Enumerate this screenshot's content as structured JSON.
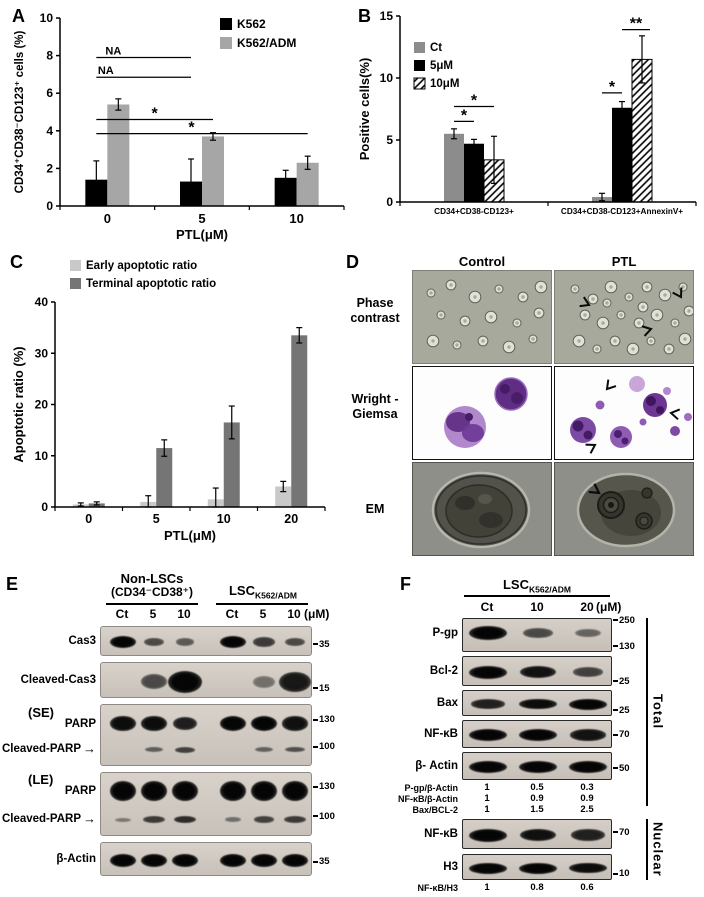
{
  "figure": {
    "panels": {
      "A": {
        "label": "A"
      },
      "B": {
        "label": "B"
      },
      "C": {
        "label": "C"
      },
      "D": {
        "label": "D",
        "columns": [
          "Control",
          "PTL"
        ],
        "rows": [
          "Phase contrast",
          "Wright -Giemsa",
          "EM"
        ]
      },
      "E": {
        "label": "E",
        "group1_title": "Non-LSCs",
        "group1_subtitle": "(CD34⁻CD38⁺)",
        "group2_title": "LSC",
        "group2_subscript": "K562/ADM",
        "lanes": [
          "Ct",
          "5",
          "10",
          "Ct",
          "5",
          "10"
        ],
        "unit": "(μM)",
        "blots": [
          {
            "labels": [
              {
                "text": "Cas3",
                "y": 0.5
              }
            ],
            "h": 30,
            "band_rows": [
              {
                "y": 0.5,
                "bh": 12,
                "bands": [
                  1,
                  0.5,
                  0.38,
                  1,
                  0.62,
                  0.5
                ]
              }
            ],
            "markers": [
              {
                "text": "35",
                "y": 0.62
              }
            ]
          },
          {
            "labels": [
              {
                "text": "Cleaved-Cas3",
                "y": 0.5
              }
            ],
            "h": 36,
            "band_rows": [
              {
                "y": 0.52,
                "bh": 22,
                "bw": 34,
                "bands": [
                  0,
                  0.5,
                  1,
                  0,
                  0.22,
                  0.85
                ]
              }
            ],
            "markers": [
              {
                "text": "15",
                "y": 0.74
              }
            ]
          },
          {
            "labels": [
              {
                "text": "(SE)",
                "y": 0.14,
                "big": true
              },
              {
                "text": "PARP",
                "y": 0.32
              },
              {
                "text": "Cleaved-PARP",
                "y": 0.72,
                "arrow": true
              }
            ],
            "h": 62,
            "band_rows": [
              {
                "y": 0.3,
                "bh": 15,
                "bands": [
                  0.95,
                  0.95,
                  0.82,
                  1,
                  1,
                  0.92
                ]
              },
              {
                "y": 0.72,
                "bh": 8,
                "bands": [
                  0,
                  0.35,
                  0.55,
                  0,
                  0.32,
                  0.45
                ]
              }
            ],
            "markers": [
              {
                "text": "130",
                "y": 0.26
              },
              {
                "text": "100",
                "y": 0.7
              }
            ]
          },
          {
            "labels": [
              {
                "text": "(LE)",
                "y": 0.12,
                "big": true
              },
              {
                "text": "PARP",
                "y": 0.3
              },
              {
                "text": "Cleaved-PARP",
                "y": 0.73,
                "arrow": true
              }
            ],
            "h": 64,
            "band_rows": [
              {
                "y": 0.28,
                "bh": 20,
                "bands": [
                  1,
                  1,
                  1,
                  1,
                  1,
                  1
                ]
              },
              {
                "y": 0.73,
                "bh": 9,
                "bands": [
                  0.15,
                  0.6,
                  0.72,
                  0.22,
                  0.55,
                  0.6
                ]
              }
            ],
            "markers": [
              {
                "text": "130",
                "y": 0.24
              },
              {
                "text": "100",
                "y": 0.7
              }
            ]
          },
          {
            "labels": [
              {
                "text": "β-Actin",
                "y": 0.5
              }
            ],
            "h": 34,
            "band_rows": [
              {
                "y": 0.5,
                "bh": 13,
                "bands": [
                  1,
                  1,
                  1,
                  1,
                  1,
                  1
                ]
              }
            ],
            "markers": [
              {
                "text": "35",
                "y": 0.6
              }
            ]
          }
        ]
      },
      "F": {
        "label": "F",
        "title": "LSC",
        "title_subscript": "K562/ADM",
        "lanes": [
          "Ct",
          "10",
          "20"
        ],
        "unit": "(μM)",
        "total_label": "Total",
        "nuclear_label": "Nuclear",
        "total_blots": [
          {
            "labels": [
              {
                "text": "P-gp",
                "y": 0.45
              }
            ],
            "h": 34,
            "band_rows": [
              {
                "y": 0.42,
                "bh": 14,
                "bands": [
                  1,
                  0.5,
                  0.3
                ]
              }
            ],
            "markers": [
              {
                "text": "250",
                "y": 0.08
              },
              {
                "text": "130",
                "y": 0.85
              }
            ]
          },
          {
            "labels": [
              {
                "text": "Bcl-2",
                "y": 0.5
              }
            ],
            "h": 30,
            "band_rows": [
              {
                "y": 0.5,
                "bh": 13,
                "bands": [
                  1,
                  0.9,
                  0.55
                ]
              }
            ],
            "markers": [
              {
                "text": "25",
                "y": 0.85
              }
            ]
          },
          {
            "labels": [
              {
                "text": "Bax",
                "y": 0.5
              }
            ],
            "h": 26,
            "band_rows": [
              {
                "y": 0.5,
                "bh": 11,
                "bands": [
                  0.8,
                  0.95,
                  1
                ]
              }
            ],
            "markers": [
              {
                "text": "25",
                "y": 0.8
              }
            ]
          },
          {
            "labels": [
              {
                "text": "NF-κB",
                "y": 0.5
              }
            ],
            "h": 28,
            "band_rows": [
              {
                "y": 0.5,
                "bh": 12,
                "bands": [
                  1,
                  1,
                  0.9
                ]
              }
            ],
            "markers": [
              {
                "text": "70",
                "y": 0.55
              }
            ]
          },
          {
            "labels": [
              {
                "text": "β- Actin",
                "y": 0.5
              }
            ],
            "h": 28,
            "band_rows": [
              {
                "y": 0.5,
                "bh": 12,
                "bands": [
                  1,
                  1,
                  1
                ]
              }
            ],
            "markers": [
              {
                "text": "50",
                "y": 0.6
              }
            ]
          }
        ],
        "total_quant": [
          {
            "label": "P-gp/β-Actin",
            "values": [
              "1",
              "0.5",
              "0.3"
            ]
          },
          {
            "label": "NF-κB/β-Actin",
            "values": [
              "1",
              "0.9",
              "0.9"
            ]
          },
          {
            "label": "Bax/BCL-2",
            "values": [
              "1",
              "1.5",
              "2.5"
            ]
          }
        ],
        "nuclear_blots": [
          {
            "labels": [
              {
                "text": "NF-κB",
                "y": 0.5
              }
            ],
            "h": 30,
            "band_rows": [
              {
                "y": 0.5,
                "bh": 13,
                "bands": [
                  1,
                  0.92,
                  0.8
                ]
              }
            ],
            "markers": [
              {
                "text": "70",
                "y": 0.45
              }
            ]
          },
          {
            "labels": [
              {
                "text": "H3",
                "y": 0.5
              }
            ],
            "h": 26,
            "band_rows": [
              {
                "y": 0.5,
                "bh": 11,
                "bands": [
                  1,
                  1,
                  0.95
                ]
              }
            ],
            "markers": [
              {
                "text": "10",
                "y": 0.78
              }
            ]
          }
        ],
        "nuclear_quant": [
          {
            "label": "NF-κB/H3",
            "values": [
              "1",
              "0.8",
              "0.6"
            ]
          }
        ]
      }
    }
  },
  "chart_data": [
    {
      "id": "A",
      "type": "bar",
      "categories": [
        "0",
        "5",
        "10"
      ],
      "xlabel": "PTL(μM)",
      "ylabel": "CD34⁺CD38⁻CD123⁺ cells (%)",
      "ylim": [
        0,
        10
      ],
      "yticks": [
        0,
        2,
        4,
        6,
        8,
        10
      ],
      "grid": false,
      "legend_position": "top-right-inside",
      "series": [
        {
          "name": "K562",
          "color": "#000000",
          "values": [
            1.4,
            1.3,
            1.5
          ],
          "errors": [
            1.0,
            1.2,
            0.4
          ]
        },
        {
          "name": "K562/ADM",
          "color": "#a6a6a6",
          "values": [
            5.4,
            3.7,
            2.3
          ],
          "errors": [
            0.3,
            0.2,
            0.35
          ]
        }
      ],
      "significance": [
        {
          "y": 7.9,
          "from": [
            0,
            0
          ],
          "to": [
            1,
            0
          ],
          "label": "NA",
          "lx": 0.18
        },
        {
          "y": 6.85,
          "from": [
            0,
            0
          ],
          "to": [
            1,
            0
          ],
          "label": "NA",
          "lx": 0.1
        },
        {
          "y": 4.6,
          "from": [
            0,
            0
          ],
          "to": [
            1,
            1
          ],
          "label": "*",
          "lx": 0.5
        },
        {
          "y": 3.85,
          "from": [
            0,
            0
          ],
          "to": [
            2,
            1
          ],
          "label": "*",
          "lx": 0.45
        }
      ]
    },
    {
      "id": "B",
      "type": "bar",
      "categories": [
        "CD34+CD38-CD123+",
        "CD34+CD38-CD123+AnnexinV+"
      ],
      "xlabel": "",
      "ylabel": "Positive cells(%)",
      "ylim": [
        0,
        15
      ],
      "yticks": [
        0,
        5,
        10,
        15
      ],
      "grid": false,
      "legend_position": "top-left-inside",
      "series": [
        {
          "name": "Ct",
          "color": "#8c8c8c",
          "values": [
            5.5,
            0.4
          ],
          "errors": [
            0.4,
            0.3
          ]
        },
        {
          "name": "5μM",
          "color": "#000000",
          "values": [
            4.7,
            7.6
          ],
          "errors": [
            0.35,
            0.5
          ]
        },
        {
          "name": "10μM",
          "color": "#ffffff",
          "hatch": true,
          "values": [
            3.4,
            11.5
          ],
          "errors": [
            1.9,
            1.9
          ]
        }
      ],
      "significance": [
        {
          "y": 6.5,
          "from": [
            0,
            0
          ],
          "to": [
            0,
            1
          ],
          "label": "*",
          "lx": 0.5
        },
        {
          "y": 7.7,
          "from": [
            0,
            0
          ],
          "to": [
            0,
            2
          ],
          "label": "*",
          "lx": 0.5
        },
        {
          "y": 8.8,
          "from": [
            1,
            0
          ],
          "to": [
            1,
            1
          ],
          "label": "*",
          "lx": 0.5
        },
        {
          "y": 13.9,
          "from": [
            1,
            1
          ],
          "to": [
            1,
            2
          ],
          "label": "**",
          "lx": 0.5,
          "extend": 8
        }
      ]
    },
    {
      "id": "C",
      "type": "bar",
      "categories": [
        "0",
        "5",
        "10",
        "20"
      ],
      "xlabel": "PTL(μM)",
      "ylabel": "Apoptotic ratio (%)",
      "ylim": [
        0,
        40
      ],
      "yticks": [
        0,
        10,
        20,
        30,
        40
      ],
      "grid": false,
      "legend_position": "top-left",
      "series": [
        {
          "name": "Early apoptotic ratio",
          "color": "#c9c9c9",
          "values": [
            0.5,
            1.0,
            1.5,
            4.0
          ],
          "errors": [
            0.3,
            1.2,
            2.2,
            1.0
          ]
        },
        {
          "name": "Terminal apoptotic ratio",
          "color": "#757575",
          "values": [
            0.7,
            11.5,
            16.5,
            33.5
          ],
          "errors": [
            0.3,
            1.6,
            3.2,
            1.5
          ]
        }
      ],
      "significance": []
    }
  ]
}
